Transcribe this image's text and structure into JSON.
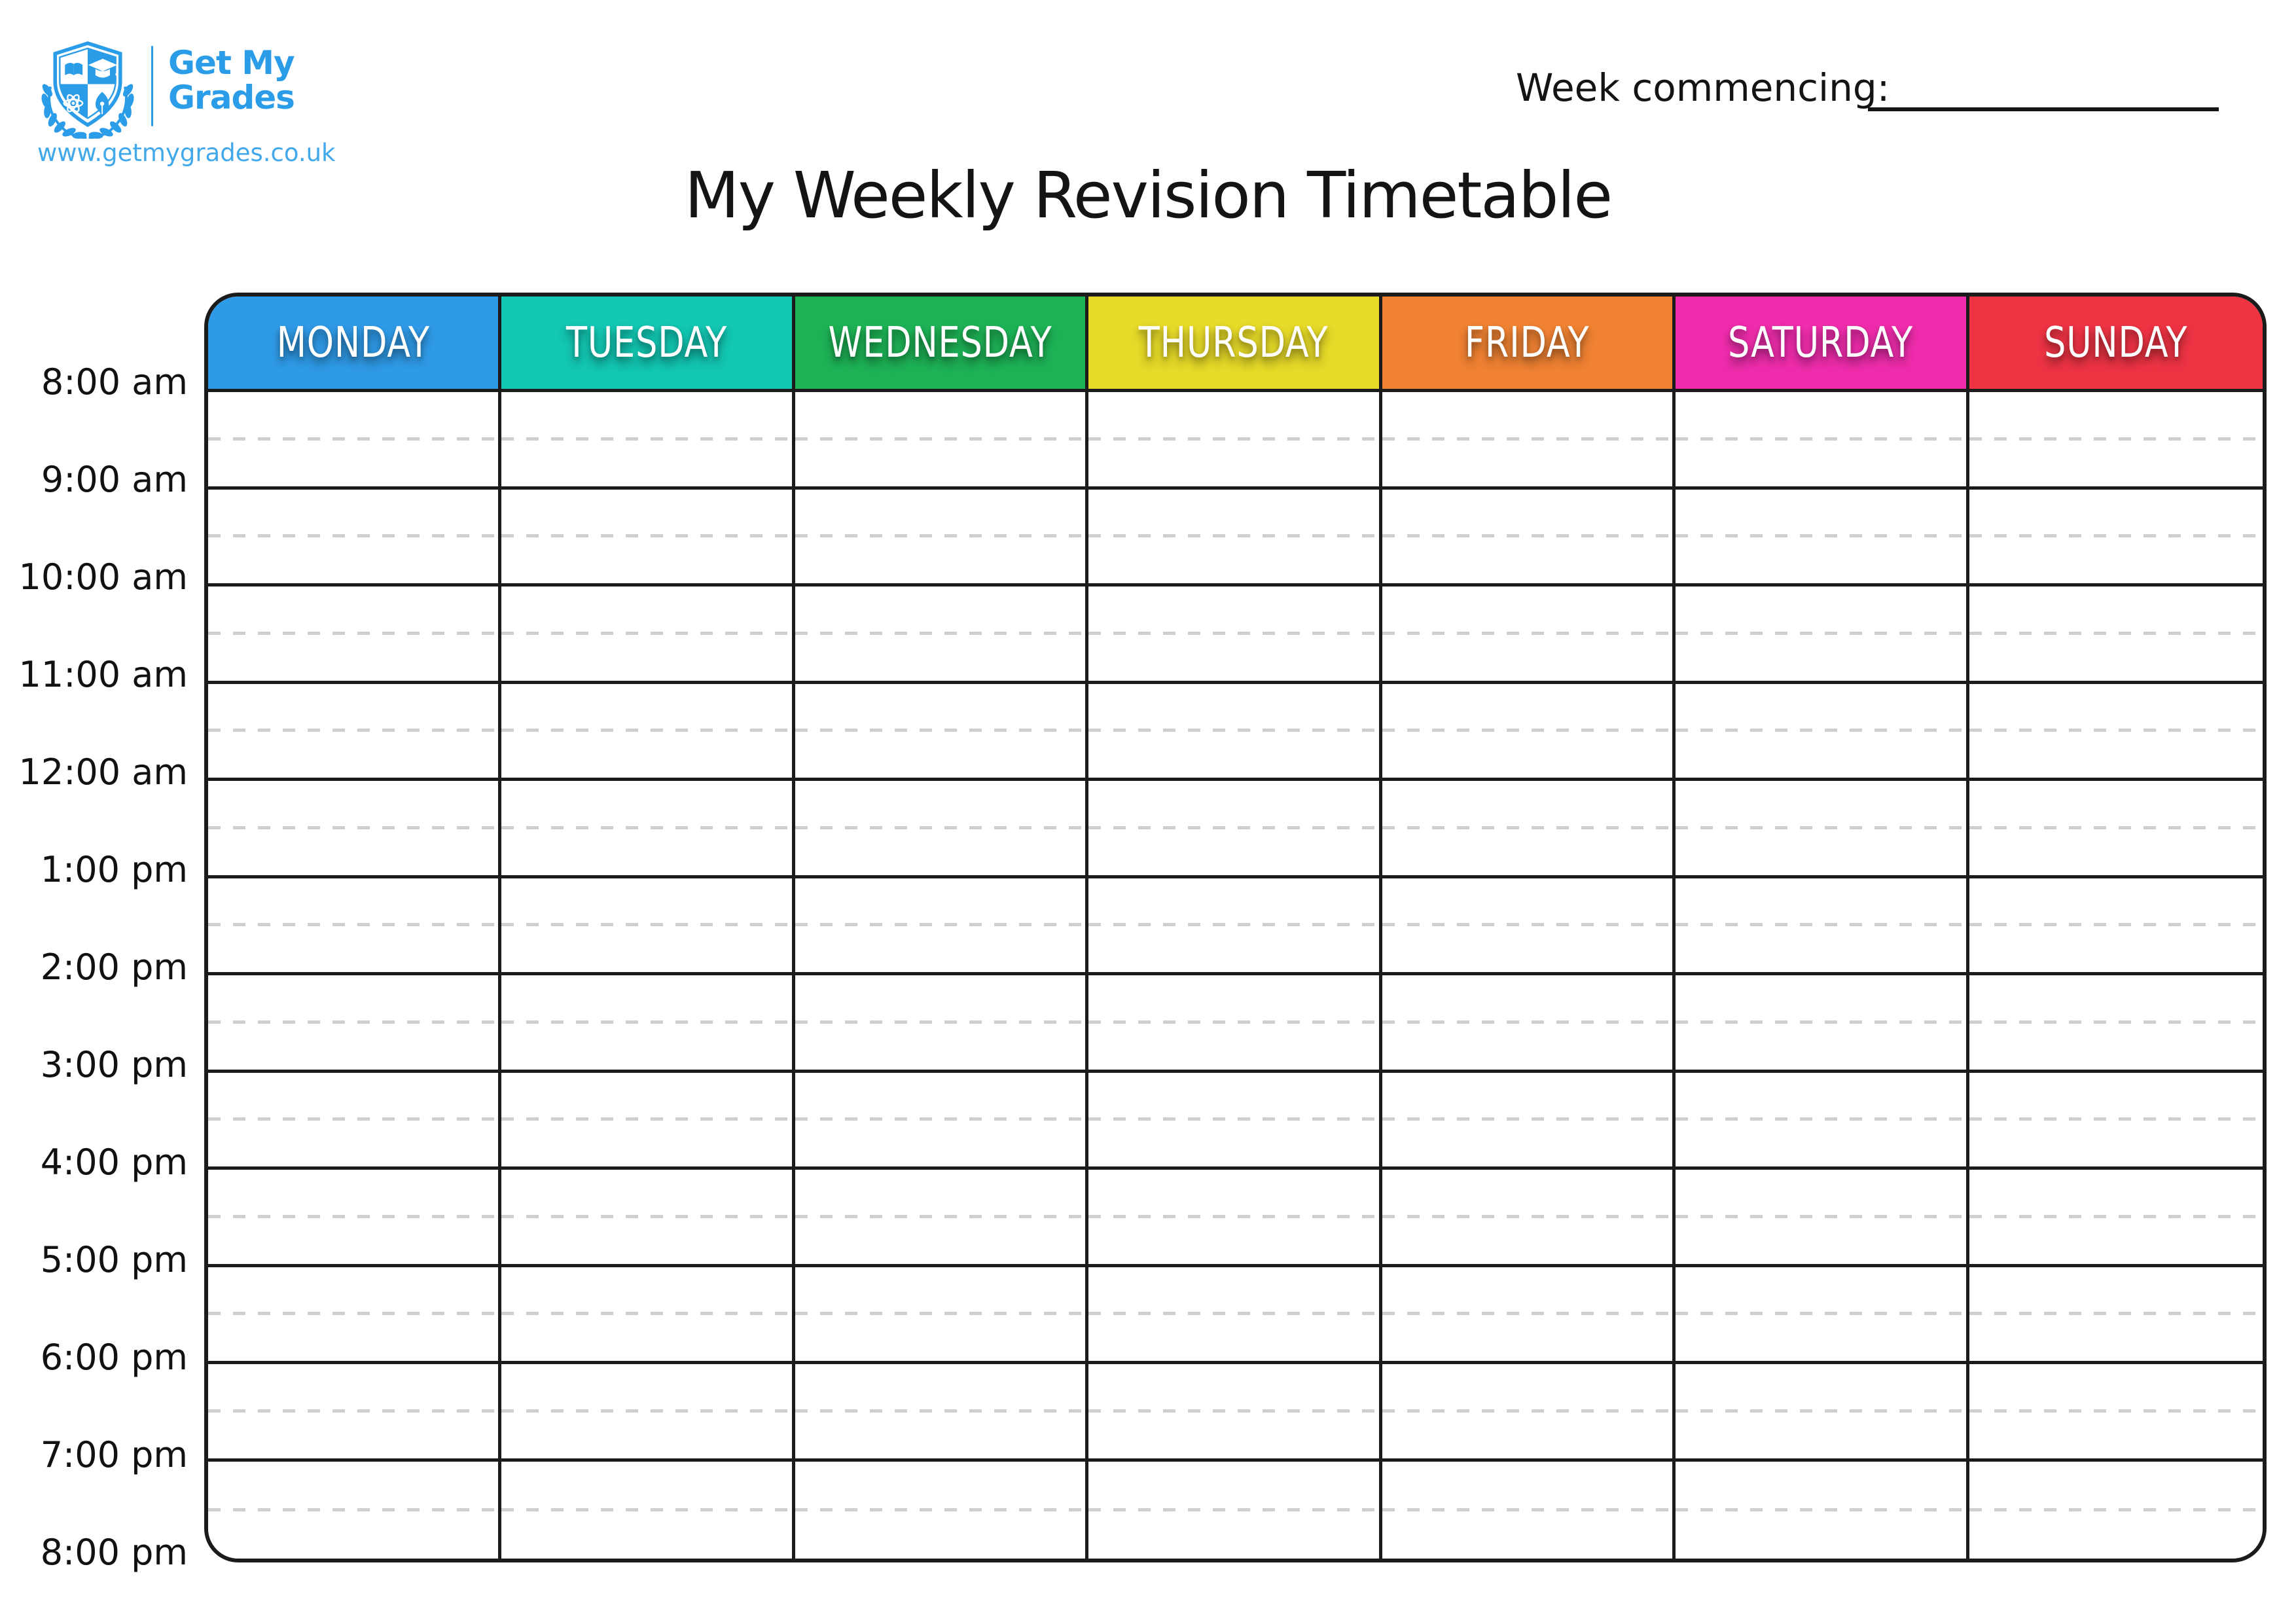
{
  "branding": {
    "logo_line1": "Get My",
    "logo_line2": "Grades",
    "website": "www.getmygrades.co.uk",
    "brand_color": "#2B9CE8"
  },
  "page": {
    "week_commencing_label": "Week commencing:",
    "title": "My Weekly Revision Timetable"
  },
  "timetable": {
    "days": [
      {
        "id": "monday",
        "label": "MONDAY",
        "color": "#2F9BE8"
      },
      {
        "id": "tuesday",
        "label": "TUESDAY",
        "color": "#12C7B3"
      },
      {
        "id": "wednesday",
        "label": "WEDNESDAY",
        "color": "#1DB355"
      },
      {
        "id": "thursday",
        "label": "THURSDAY",
        "color": "#E7DA28"
      },
      {
        "id": "friday",
        "label": "FRIDAY",
        "color": "#F08232"
      },
      {
        "id": "saturday",
        "label": "SATURDAY",
        "color": "#EF2CAC"
      },
      {
        "id": "sunday",
        "label": "SUNDAY",
        "color": "#EE3343"
      }
    ],
    "time_labels": [
      "8:00 am",
      "9:00 am",
      "10:00 am",
      "11:00 am",
      "12:00 am",
      "1:00 pm",
      "2:00 pm",
      "3:00 pm",
      "4:00 pm",
      "5:00 pm",
      "6:00 pm",
      "7:00 pm",
      "8:00 pm"
    ],
    "hour_rows": 12,
    "half_hour_divisions": true,
    "colors": {
      "grid_line": "#1B1B1B",
      "half_hour_dash": "#CFCFCF",
      "day_label_text": "#FFFFFF",
      "time_label_text": "#111111"
    }
  }
}
